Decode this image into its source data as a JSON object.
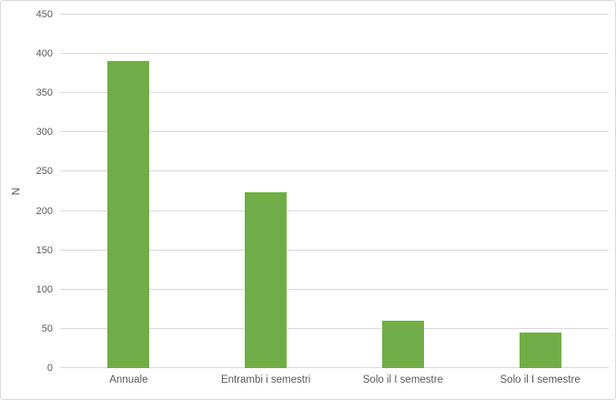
{
  "chart_data": {
    "type": "bar",
    "title": "",
    "categories": [
      "Annuale",
      "Entrambi i semestri",
      "Solo il I semestre",
      "Solo il I semestre"
    ],
    "values": [
      391,
      224,
      60,
      45
    ],
    "xlabel": "",
    "ylabel": "N",
    "ylim": [
      0,
      450
    ],
    "ytick_step": 50,
    "yticks": [
      0,
      50,
      100,
      150,
      200,
      250,
      300,
      350,
      400,
      450
    ],
    "grid": true,
    "legend": false,
    "bar_color": "#70AD47",
    "gridline_color": "#D9D9D9",
    "axis_text_color": "#595959",
    "frame_border_color": "#D9D9D9",
    "background_color": "#FFFFFF"
  }
}
